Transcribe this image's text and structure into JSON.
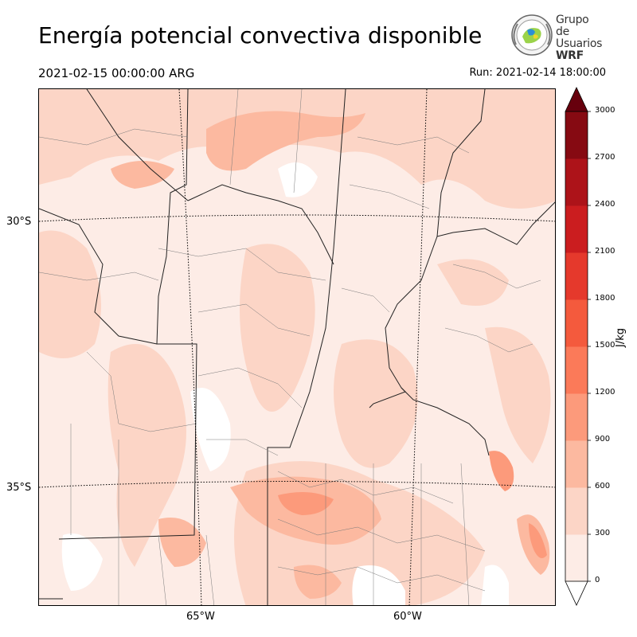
{
  "header": {
    "title": "Energía potencial convectiva disponible",
    "valid_time": "2021-02-15 00:00:00 ARG",
    "run_time": "Run: 2021-02-14 18:00:00"
  },
  "logo": {
    "line1": "Grupo de",
    "line2": "Usuarios",
    "line3": "WRF"
  },
  "map": {
    "lat_labels": [
      "30°S",
      "35°S"
    ],
    "lon_labels": [
      "65°W",
      "60°W"
    ]
  },
  "colorbar": {
    "unit": "J/kg",
    "ticks": [
      "0",
      "300",
      "600",
      "900",
      "1200",
      "1500",
      "1800",
      "2100",
      "2400",
      "2700",
      "3000"
    ],
    "colors": [
      "#fdece6",
      "#fcd5c6",
      "#fcb9a0",
      "#fc9a7b",
      "#fb7a59",
      "#f45a3d",
      "#e5392c",
      "#cb1d1f",
      "#ad1319",
      "#860a12"
    ],
    "extend_color": "#67000d"
  }
}
